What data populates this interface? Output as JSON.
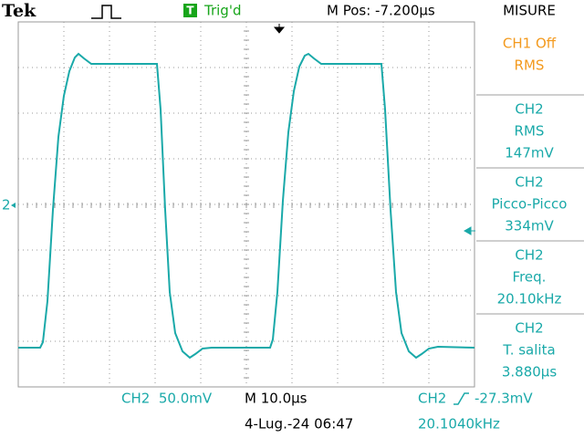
{
  "header": {
    "brand": "Tek",
    "trigger_badge": "T",
    "trigger_status": "Trig'd",
    "position": "M Pos: -7.200µs"
  },
  "measures": {
    "title": "MISURE",
    "items": [
      {
        "lines": [
          "CH1 Off",
          "RMS"
        ]
      },
      {
        "lines": [
          "CH2",
          "RMS",
          "147mV"
        ]
      },
      {
        "lines": [
          "CH2",
          "Picco-Picco",
          "334mV"
        ]
      },
      {
        "lines": [
          "CH2",
          "Freq.",
          "20.10kHz"
        ]
      },
      {
        "lines": [
          "CH2",
          "T. salita",
          "3.880µs"
        ]
      }
    ]
  },
  "footer": {
    "channel_scale": "CH2  50.0mV",
    "time_scale": "M 10.0µs",
    "trigger_channel": "CH2",
    "trigger_level": "-27.3mV",
    "date": "4-Lug.-24 06:47",
    "trigger_frequency": "20.1040kHz"
  },
  "markers": {
    "channel": "2"
  }
}
